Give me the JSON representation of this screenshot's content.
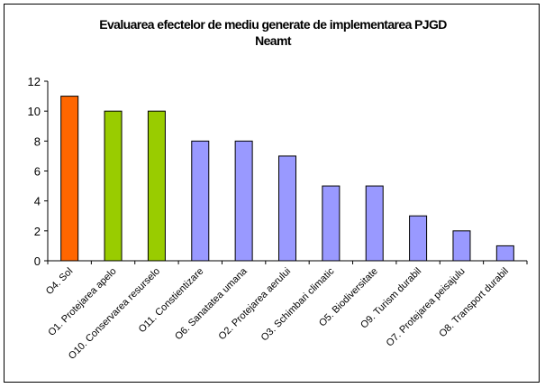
{
  "chart_data": {
    "type": "bar",
    "title_lines": [
      "Evaluarea efectelor de mediu generate de implementarea PJGD",
      "Neamt"
    ],
    "xlabel": "",
    "ylabel": "",
    "ylim": [
      0,
      12
    ],
    "y_ticks": [
      0,
      2,
      4,
      6,
      8,
      10,
      12
    ],
    "grid": false,
    "legend": "none",
    "categories": [
      "O4. Sol",
      "O1. Protejarea apelo",
      "O10. Conservarea resurselo",
      "O11. Constientizare",
      "O6. Sanatatea umana",
      "O2. Protejarea aerului",
      "O3. Schimbari climatic",
      "O5. Biodiversitate",
      "O9. Turism durabil",
      "O7. Protejarea peisajulu",
      "O8. Transport durabil"
    ],
    "values": [
      11,
      10,
      10,
      8,
      8,
      7,
      5,
      5,
      3,
      2,
      1
    ],
    "bar_colors": [
      "#ff6600",
      "#99cc00",
      "#99cc00",
      "#9999ff",
      "#9999ff",
      "#9999ff",
      "#9999ff",
      "#9999ff",
      "#9999ff",
      "#9999ff",
      "#9999ff"
    ]
  }
}
